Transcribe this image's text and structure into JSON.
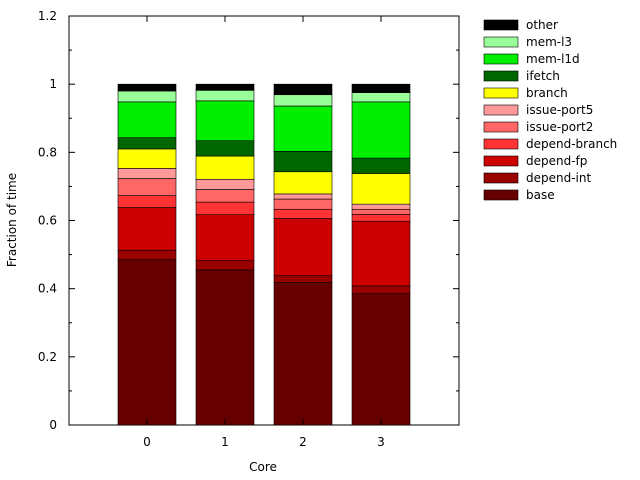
{
  "chart_data": {
    "type": "bar",
    "stacked": true,
    "title": "",
    "xlabel": "Core",
    "ylabel": "Fraction of time",
    "categories": [
      "0",
      "1",
      "2",
      "3"
    ],
    "ylim": [
      0,
      1.2
    ],
    "yticks": [
      "0",
      "0.2",
      "0.4",
      "0.6",
      "0.8",
      "1",
      "1.2"
    ],
    "legend_position": "outside-right",
    "grid": false,
    "series": [
      {
        "name": "base",
        "color": "#660000",
        "values": [
          0.485,
          0.455,
          0.418,
          0.385
        ]
      },
      {
        "name": "depend-int",
        "color": "#990000",
        "values": [
          0.028,
          0.027,
          0.02,
          0.023
        ]
      },
      {
        "name": "depend-fp",
        "color": "#cc0000",
        "values": [
          0.125,
          0.135,
          0.168,
          0.19
        ]
      },
      {
        "name": "depend-branch",
        "color": "#ff3333",
        "values": [
          0.035,
          0.037,
          0.027,
          0.02
        ]
      },
      {
        "name": "issue-port2",
        "color": "#ff6666",
        "values": [
          0.05,
          0.037,
          0.03,
          0.015
        ]
      },
      {
        "name": "issue-port5",
        "color": "#ff9999",
        "values": [
          0.03,
          0.03,
          0.015,
          0.015
        ]
      },
      {
        "name": "branch",
        "color": "#ffff00",
        "values": [
          0.057,
          0.068,
          0.065,
          0.09
        ]
      },
      {
        "name": "ifetch",
        "color": "#006600",
        "values": [
          0.033,
          0.045,
          0.06,
          0.045
        ]
      },
      {
        "name": "mem-l1d",
        "color": "#00ee00",
        "values": [
          0.105,
          0.117,
          0.133,
          0.165
        ]
      },
      {
        "name": "mem-l3",
        "color": "#99ff99",
        "values": [
          0.032,
          0.031,
          0.033,
          0.027
        ]
      },
      {
        "name": "other",
        "color": "#000000",
        "values": [
          0.02,
          0.018,
          0.031,
          0.025
        ]
      }
    ]
  }
}
